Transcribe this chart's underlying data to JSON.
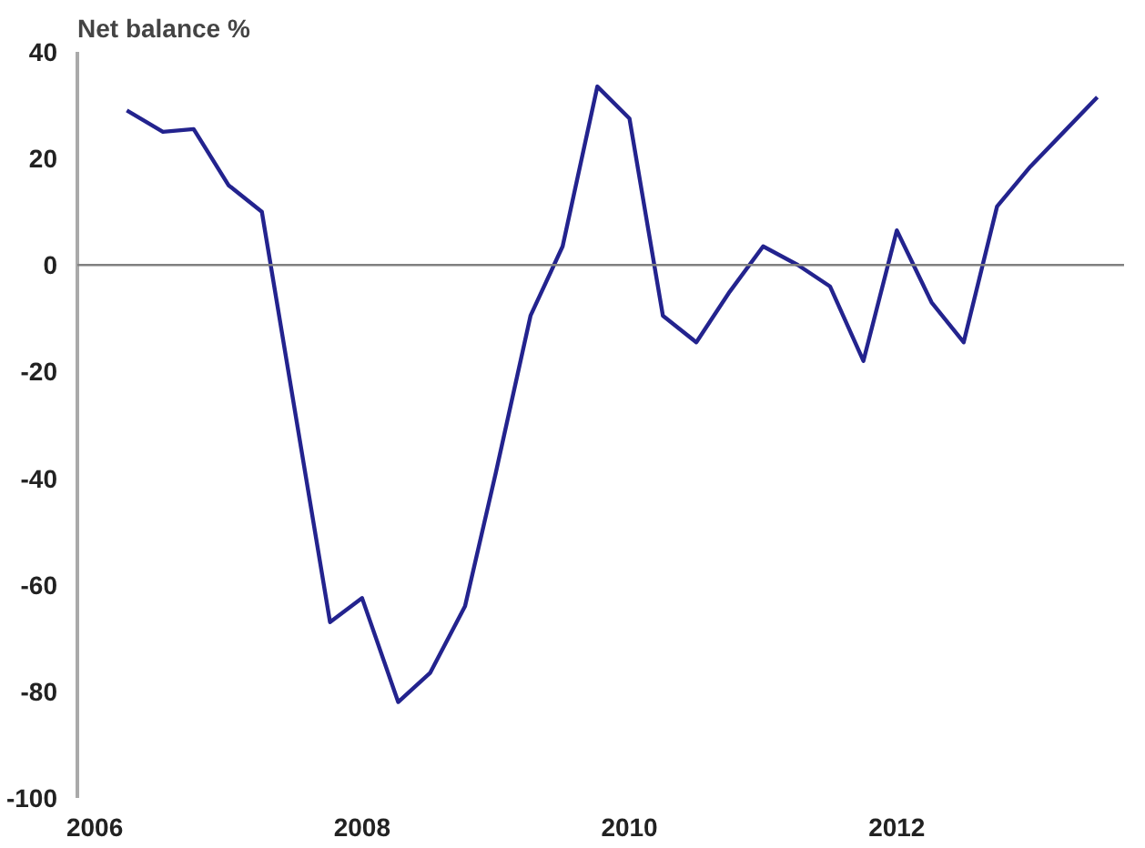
{
  "chart_data": {
    "type": "line",
    "ylabel": "Net balance %",
    "x": [
      2006.24,
      2006.51,
      2006.74,
      2007.0,
      2007.25,
      2007.76,
      2008.0,
      2008.27,
      2008.51,
      2008.77,
      2009.0,
      2009.26,
      2009.5,
      2009.76,
      2010.0,
      2010.25,
      2010.5,
      2010.75,
      2011.0,
      2011.26,
      2011.5,
      2011.75,
      2012.0,
      2012.26,
      2012.5,
      2012.75,
      2013.0,
      2013.25,
      2013.5
    ],
    "series": [
      {
        "color": "#23238e",
        "values": [
          29,
          25,
          25.5,
          15,
          10,
          -67,
          -62.5,
          -82,
          -76.5,
          -64,
          -39,
          -9.5,
          3.5,
          33.5,
          27.5,
          -9.5,
          -14.5,
          -5,
          3.5,
          0,
          -4,
          -18,
          6.5,
          -7,
          -14.5,
          11,
          18.5,
          25,
          31.5
        ]
      }
    ],
    "xlim": [
      2005.87,
      2013.7
    ],
    "ylim": [
      -100,
      40
    ],
    "xticks": [
      2006,
      2008,
      2010,
      2012
    ],
    "yticks": [
      -100,
      -80,
      -60,
      -40,
      -20,
      0,
      20,
      40
    ],
    "ref_lines": [
      {
        "axis": "y",
        "value": 0,
        "color": "#808080"
      }
    ],
    "grid": false,
    "marker": "none",
    "line_style": "solid"
  }
}
